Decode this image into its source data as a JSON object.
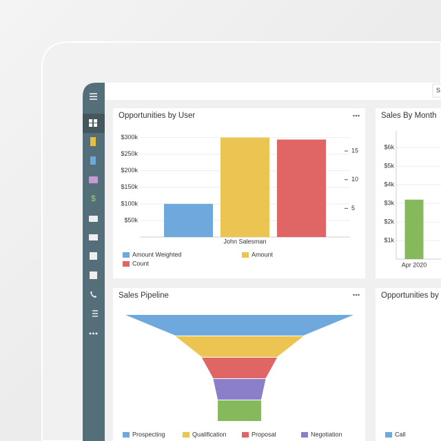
{
  "header": {
    "search": "S"
  },
  "chart_data": [
    {
      "type": "bar",
      "title": "Opportunities by User",
      "categories": [
        "John Salesman"
      ],
      "series": [
        {
          "name": "Amount Weighted",
          "color": "#6fa8dc",
          "values": [
            100000
          ]
        },
        {
          "name": "Amount",
          "color": "#ecc451",
          "values": [
            300000
          ]
        },
        {
          "name": "Count",
          "color": "#e06666",
          "values": [
            17
          ],
          "axis": "y2"
        }
      ],
      "ylim": [
        0,
        320000
      ],
      "yticks": [
        {
          "value": 50000,
          "label": "$50k"
        },
        {
          "value": 100000,
          "label": "$100k"
        },
        {
          "value": 150000,
          "label": "$150k"
        },
        {
          "value": 200000,
          "label": "$200k"
        },
        {
          "value": 250000,
          "label": "$250k"
        },
        {
          "value": 300000,
          "label": "$300k"
        }
      ],
      "y2lim": [
        0,
        18.5
      ],
      "y2ticks": [
        5,
        10,
        15
      ],
      "grid": true
    },
    {
      "type": "bar",
      "title": "Sales By Month",
      "categories": [
        "Apr 2020"
      ],
      "series": [
        {
          "color": "#86b85c",
          "values": [
            3200
          ]
        }
      ],
      "ylim": [
        0,
        6900
      ],
      "yticks": [
        {
          "value": 1000,
          "label": "$1k"
        },
        {
          "value": 2000,
          "label": "$2k"
        },
        {
          "value": 3000,
          "label": "$3k"
        },
        {
          "value": 4000,
          "label": "$4k"
        },
        {
          "value": 5000,
          "label": "$5k"
        },
        {
          "value": 6000,
          "label": "$6k"
        }
      ],
      "grid": true
    },
    {
      "type": "funnel",
      "title": "Sales Pipeline",
      "categories": [
        "Prospecting",
        "Qualification",
        "Proposal",
        "Negotiation",
        null
      ],
      "values": [
        100,
        56,
        33,
        23,
        19
      ],
      "colors": [
        "#6fa8dc",
        "#ecc451",
        "#e06666",
        "#8a7fc8",
        "#86b85c"
      ]
    },
    {
      "type": "bar",
      "title": "Opportunities by",
      "series": [
        {
          "name": "Call",
          "color": "#6fa8dc"
        }
      ]
    }
  ]
}
